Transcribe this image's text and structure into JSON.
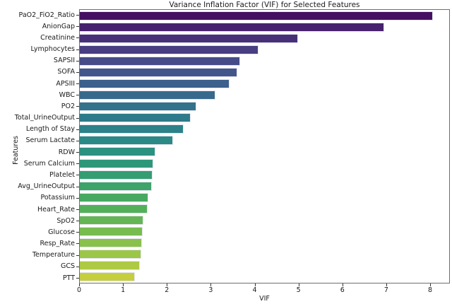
{
  "chart_data": {
    "type": "bar",
    "orientation": "horizontal",
    "title": "Variance Inflation Factor (VIF) for Selected Features",
    "xlabel": "VIF",
    "ylabel": "Features",
    "categories": [
      "PaO2_FiO2_Ratio",
      "AnionGap",
      "Creatinine",
      "Lymphocytes",
      "SAPSII",
      "SOFA",
      "APSIII",
      "WBC",
      "PO2",
      "Total_UrineOutput",
      "Length of Stay",
      "Serum Lactate",
      "RDW",
      "Serum Calcium",
      "Platelet",
      "Avg_UrineOutput",
      "Potassium",
      "Heart_Rate",
      "SpO2",
      "Glucose",
      "Resp_Rate",
      "Temperature",
      "GCS",
      "PTT"
    ],
    "values": [
      8.08,
      6.97,
      4.99,
      4.08,
      3.66,
      3.61,
      3.43,
      3.1,
      2.66,
      2.53,
      2.37,
      2.13,
      1.73,
      1.68,
      1.66,
      1.64,
      1.56,
      1.55,
      1.45,
      1.44,
      1.42,
      1.4,
      1.37,
      1.26
    ],
    "bar_colors": [
      "#451061",
      "#47216d",
      "#483078",
      "#493e82",
      "#474b88",
      "#42568b",
      "#3d608c",
      "#38698c",
      "#33728b",
      "#2f7a8a",
      "#2c8288",
      "#2b8a85",
      "#2b9180",
      "#2e977a",
      "#349d72",
      "#3ca369",
      "#47a961",
      "#54af59",
      "#64b654",
      "#77bc50",
      "#8ac14c",
      "#9cc647",
      "#aec943",
      "#c5ce3d"
    ],
    "xlim": [
      0,
      8.45
    ],
    "xticks": [
      0,
      1,
      2,
      3,
      4,
      5,
      6,
      7,
      8
    ],
    "grid": false,
    "legend": null,
    "colormap": "viridis"
  }
}
